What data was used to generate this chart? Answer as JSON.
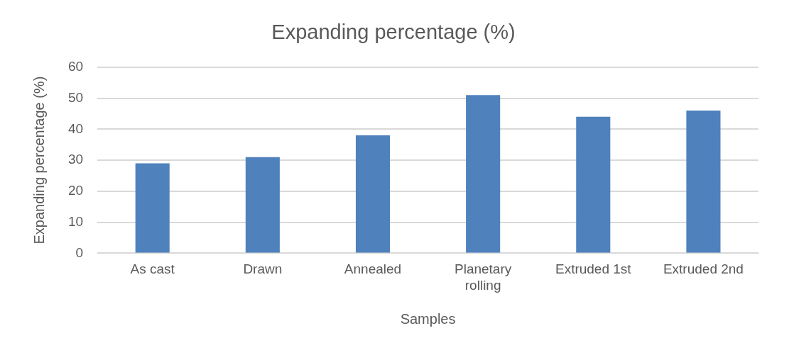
{
  "chart_data": {
    "type": "bar",
    "title": "Expanding percentage (%)",
    "xlabel": "Samples",
    "ylabel": "Expanding percentage (%)",
    "categories": [
      "As cast",
      "Drawn",
      "Annealed",
      "Planetary rolling",
      "Extruded 1st",
      "Extruded 2nd"
    ],
    "values": [
      29,
      31,
      38,
      51,
      44,
      46
    ],
    "color": "#4f81bd",
    "ylim": [
      0,
      60
    ],
    "yticks": [
      0,
      10,
      20,
      30,
      40,
      50,
      60
    ],
    "grid": "y"
  }
}
